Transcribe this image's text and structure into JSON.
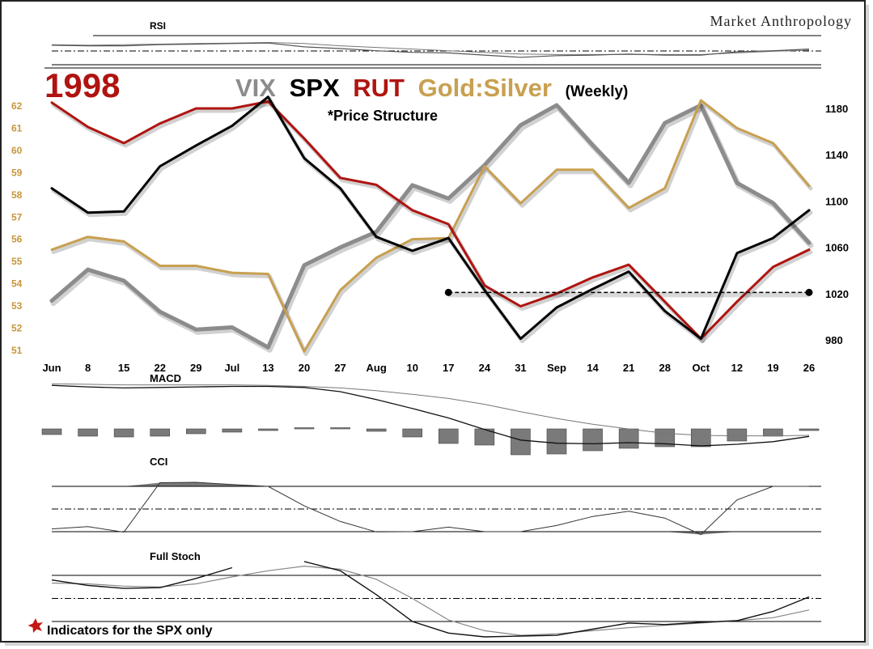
{
  "header": {
    "brand": "Market Anthropology",
    "year": "1998",
    "title_vix": "VIX",
    "title_spx": "SPX",
    "title_rut": "RUT",
    "title_gold": "Gold:Silver",
    "title_weekly": "(Weekly)",
    "subtitle": "*Price Structure"
  },
  "colors": {
    "vix": "#8c8c8c",
    "spx": "#000000",
    "rut": "#b01410",
    "gold": "#c8a050",
    "year": "#b01410",
    "left_axis": "#c8963c",
    "indicator_fill": "#7a7a7a"
  },
  "footer": {
    "note": "Indicators for the SPX only"
  },
  "panels": {
    "rsi_label": "RSI",
    "macd_label": "MACD",
    "cci_label": "CCI",
    "stoch_label": "Full Stoch"
  },
  "chart_data": {
    "type": "line",
    "x": [
      "Jun",
      "8",
      "15",
      "22",
      "29",
      "Jul",
      "13",
      "20",
      "27",
      "Aug",
      "10",
      "17",
      "24",
      "31",
      "Sep",
      "14",
      "21",
      "28",
      "Oct",
      "12",
      "19",
      "26"
    ],
    "left_axis": {
      "ticks": [
        62,
        61,
        60,
        59,
        58,
        57,
        56,
        55,
        54,
        53,
        52,
        51
      ],
      "ylim": [
        51,
        62
      ]
    },
    "right_axis": {
      "ticks": [
        1180,
        1140,
        1100,
        1060,
        1020,
        980
      ],
      "ylim": [
        980,
        1180
      ]
    },
    "series": [
      {
        "name": "VIX",
        "axis": "left",
        "values": [
          53.2,
          54.6,
          54.1,
          52.7,
          51.9,
          52.0,
          51.1,
          54.8,
          55.6,
          56.3,
          58.4,
          57.8,
          59.3,
          61.1,
          62.0,
          60.2,
          58.5,
          61.2,
          62.0,
          58.5,
          57.6,
          55.8
        ]
      },
      {
        "name": "SPX",
        "axis": "right",
        "values": [
          1111,
          1090,
          1091,
          1130,
          1148,
          1165,
          1190,
          1137,
          1111,
          1069,
          1057,
          1068,
          1023,
          981,
          1008,
          1024,
          1039,
          1005,
          981,
          1055,
          1068,
          1092
        ]
      },
      {
        "name": "RUT",
        "axis": "right",
        "values": [
          1185,
          1164,
          1150,
          1167,
          1180,
          1180,
          1186,
          1154,
          1120,
          1114,
          1092,
          1080,
          1027,
          1009,
          1020,
          1034,
          1045,
          1013,
          981,
          1013,
          1043,
          1058
        ]
      },
      {
        "name": "Gold:Silver",
        "axis": "right",
        "values": [
          1058,
          1069,
          1065,
          1044,
          1044,
          1038,
          1037,
          970,
          1023,
          1051,
          1067,
          1068,
          1130,
          1098,
          1127,
          1127,
          1094,
          1111,
          1187,
          1163,
          1150,
          1113
        ]
      }
    ],
    "annotation": {
      "type": "dashed-line",
      "axis": "right",
      "value": 1021,
      "from": "17",
      "to": "26"
    },
    "indicators": {
      "rsi": {
        "levels": [
          70,
          50,
          30
        ],
        "values": [
          59,
          58,
          58,
          60,
          61,
          62,
          63,
          56,
          53,
          49,
          46,
          45,
          41,
          37,
          40,
          41,
          43,
          41,
          41,
          47,
          49,
          52
        ],
        "values_slow": [
          60,
          59,
          60,
          61,
          62,
          63,
          64,
          62,
          58,
          55,
          52,
          49,
          46,
          43,
          42,
          42,
          42,
          42,
          42,
          45,
          48,
          50
        ]
      },
      "macd": {
        "histogram": [
          -0.7,
          -0.9,
          -1.0,
          -0.9,
          -0.6,
          -0.4,
          -0.2,
          0.1,
          0.1,
          -0.3,
          -1.0,
          -1.8,
          -2.0,
          -3.2,
          -3.1,
          -2.7,
          -2.4,
          -2.2,
          -2.2,
          -1.5,
          -0.9,
          -0.2
        ],
        "line": [
          9.2,
          8.9,
          8.7,
          8.8,
          8.9,
          9.0,
          9.0,
          8.8,
          8.0,
          6.5,
          4.8,
          3.0,
          0.8,
          -1.2,
          -1.8,
          -1.9,
          -1.7,
          -1.9,
          -2.3,
          -2.0,
          -1.5,
          -0.5
        ],
        "signal": [
          9.5,
          9.4,
          9.3,
          9.3,
          9.3,
          9.3,
          9.2,
          9.0,
          8.7,
          8.2,
          7.5,
          6.7,
          5.6,
          4.2,
          2.9,
          1.8,
          0.9,
          0.1,
          -0.3,
          -0.4,
          -0.4,
          -0.3
        ]
      },
      "cci": {
        "levels": [
          100,
          0,
          -100
        ],
        "values": [
          -88,
          -78,
          -102,
          116,
          118,
          108,
          100,
          14,
          -55,
          -101,
          -100,
          -80,
          -100,
          -100,
          -73,
          -33,
          -10,
          -40,
          -113,
          40,
          100,
          100
        ]
      },
      "full_stoch": {
        "levels": [
          80,
          50,
          20
        ],
        "k": [
          74,
          67,
          63,
          64,
          76,
          90,
          null,
          98,
          86,
          55,
          20,
          5,
          0,
          1,
          2,
          10,
          18,
          16,
          19,
          21,
          33,
          52
        ],
        "d": [
          70,
          69,
          66,
          65,
          69,
          78,
          86,
          92,
          88,
          75,
          50,
          22,
          8,
          2,
          4,
          8,
          12,
          15,
          18,
          21,
          25,
          35
        ]
      }
    }
  }
}
